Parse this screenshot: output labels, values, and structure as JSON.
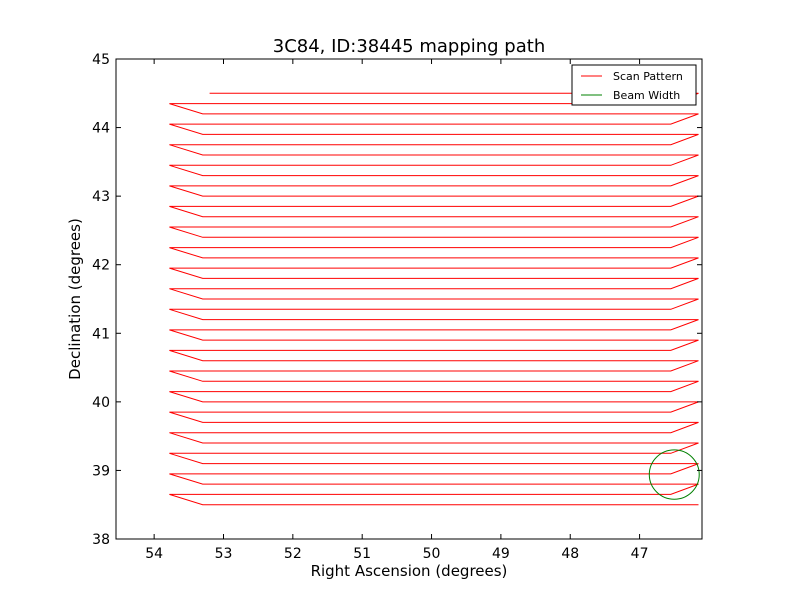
{
  "chart_data": {
    "type": "line",
    "title": "3C84, ID:38445 mapping path",
    "xlabel": "Right Ascension (degrees)",
    "ylabel": "Declination (degrees)",
    "xlim": [
      54.55,
      46.1
    ],
    "ylim": [
      38,
      45
    ],
    "x_reversed": true,
    "xticks": [
      54,
      53,
      52,
      51,
      50,
      49,
      48,
      47
    ],
    "yticks": [
      38,
      39,
      40,
      41,
      42,
      43,
      44,
      45
    ],
    "grid": false,
    "legend": {
      "placement": "top-right",
      "entries": [
        "Scan Pattern",
        "Beam Width"
      ]
    },
    "series": [
      {
        "name": "Scan Pattern",
        "color": "#ff0000",
        "kind": "raster",
        "dec_start": 44.5,
        "dec_end": 38.49,
        "dec_step": 0.15,
        "ra_start": 53.2,
        "ra_left": 53.78,
        "ra_left_inner": 53.3,
        "ra_right": 46.15,
        "ra_right_inner": 46.55
      },
      {
        "name": "Beam Width",
        "color": "#008000",
        "kind": "circle",
        "center_ra": 46.5,
        "center_dec": 38.94,
        "radius": 0.36
      }
    ]
  }
}
